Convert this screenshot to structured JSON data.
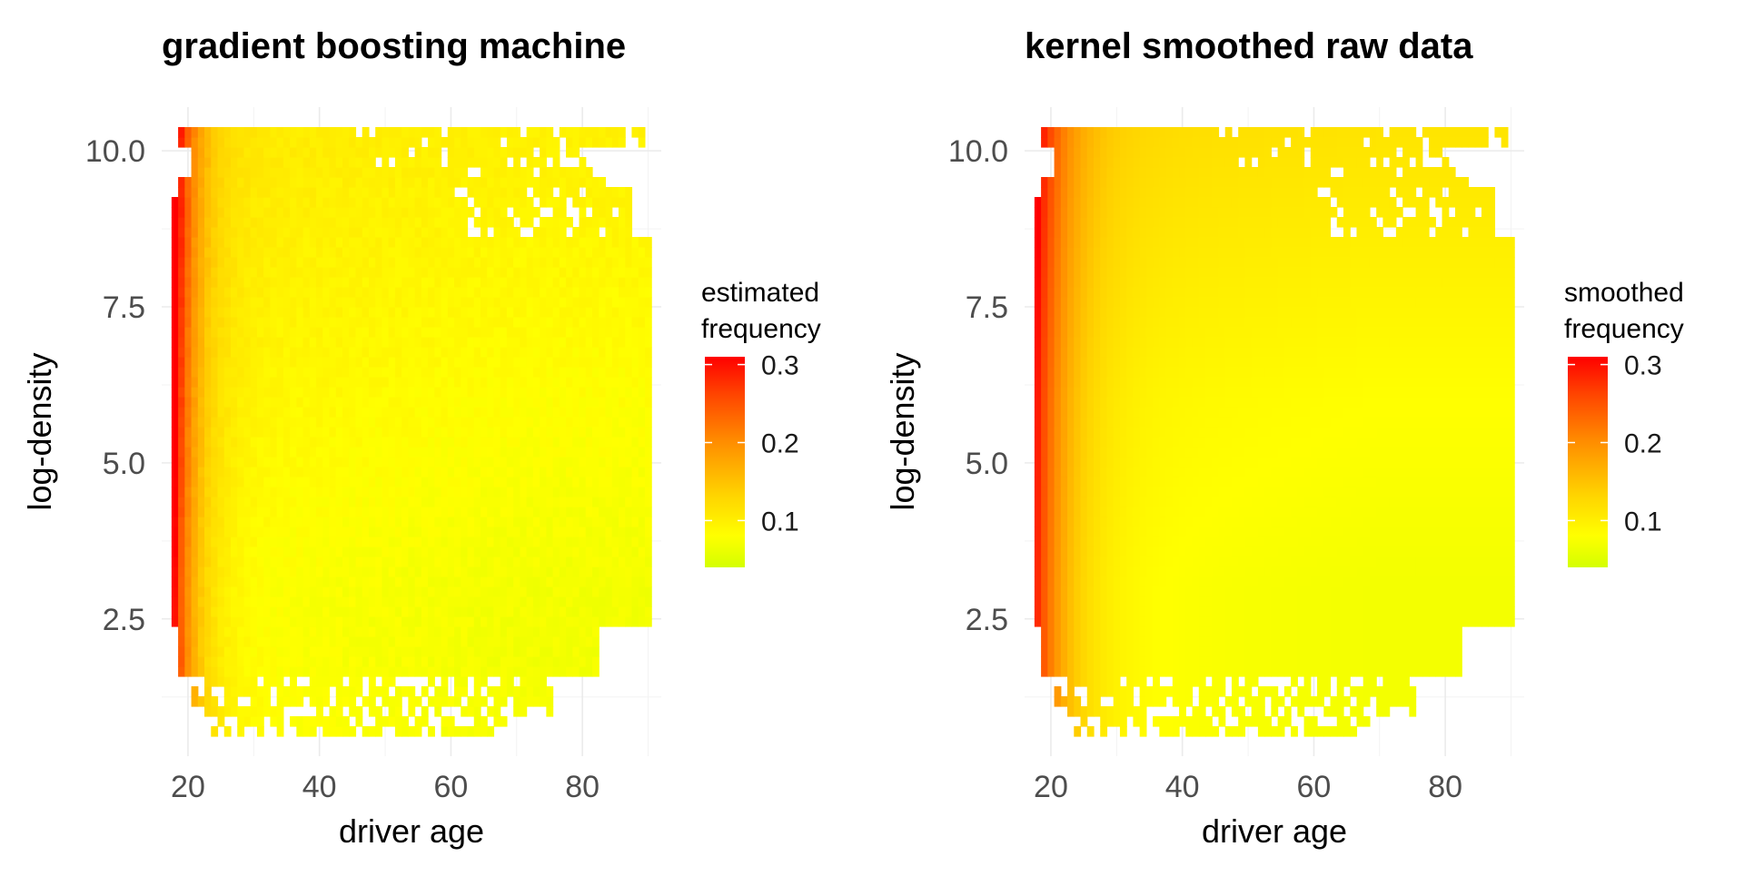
{
  "chart_data": [
    {
      "type": "heatmap",
      "title": "gradient boosting machine",
      "xlabel": "driver age",
      "ylabel": "log-density",
      "x_ticks": [
        20,
        40,
        60,
        80
      ],
      "y_ticks": [
        "2.5",
        "5.0",
        "7.5",
        "10.0"
      ],
      "xlim": [
        16,
        92
      ],
      "ylim": [
        0.3,
        10.7
      ],
      "legend_title": [
        "estimated",
        "frequency"
      ],
      "legend_ticks": [
        "0.3",
        "0.2",
        "0.1"
      ],
      "legend_range": [
        0.04,
        0.31
      ],
      "colors": [
        "#d4ff00",
        "#ffff00",
        "#ffd200",
        "#ff8c00",
        "#ff4500",
        "#ff0000"
      ],
      "model": "gbm",
      "grid": true,
      "legend_position": "right"
    },
    {
      "type": "heatmap",
      "title": "kernel smoothed raw data",
      "xlabel": "driver age",
      "ylabel": "log-density",
      "x_ticks": [
        20,
        40,
        60,
        80
      ],
      "y_ticks": [
        "2.5",
        "5.0",
        "7.5",
        "10.0"
      ],
      "xlim": [
        16,
        92
      ],
      "ylim": [
        0.3,
        10.7
      ],
      "legend_title": [
        "smoothed",
        "frequency"
      ],
      "legend_ticks": [
        "0.3",
        "0.2",
        "0.1"
      ],
      "legend_range": [
        0.04,
        0.31
      ],
      "colors": [
        "#d4ff00",
        "#ffff00",
        "#ffd200",
        "#ff8c00",
        "#ff4500",
        "#ff0000"
      ],
      "model": "smooth",
      "grid": true,
      "legend_position": "right"
    }
  ]
}
